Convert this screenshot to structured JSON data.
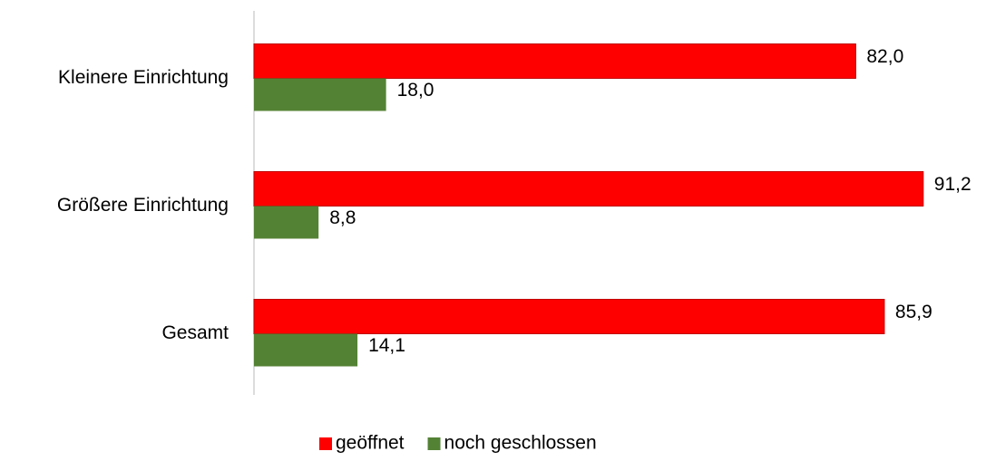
{
  "chart_data": {
    "type": "barh",
    "categories": [
      "Kleinere Einrichtung",
      "Größere Einrichtung",
      "Gesamt"
    ],
    "series": [
      {
        "name": "geöffnet",
        "color": "#ff0000",
        "values": [
          82.0,
          91.2,
          85.9
        ],
        "value_labels": [
          "82,0",
          "91,2",
          "85,9"
        ]
      },
      {
        "name": "noch geschlossen",
        "color": "#548235",
        "values": [
          18.0,
          8.8,
          14.1
        ],
        "value_labels": [
          "18,0",
          "8,8",
          "14,1"
        ]
      }
    ],
    "xlim": [
      0,
      100
    ],
    "legend": "bottom"
  }
}
